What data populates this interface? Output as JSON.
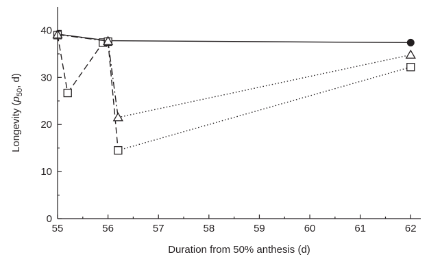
{
  "chart_data": {
    "type": "line",
    "title": "",
    "xlabel": "Duration from 50% anthesis (d)",
    "ylabel": {
      "pre": "Longevity (",
      "italic": "p",
      "sub": "50",
      "post": ", d)"
    },
    "xlim": [
      55,
      62.2
    ],
    "ylim": [
      0,
      45
    ],
    "xticks": [
      55,
      56,
      57,
      58,
      59,
      60,
      61,
      62
    ],
    "yticks": [
      0,
      10,
      20,
      30,
      40
    ],
    "grid": false,
    "legend": "none",
    "series": [
      {
        "marker": "filled-circle",
        "line": "solid",
        "color": "#231f20",
        "points": [
          [
            55.0,
            39.2
          ],
          [
            56.0,
            37.8
          ],
          [
            62.0,
            37.4
          ]
        ],
        "segments": [
          {
            "from": 0,
            "to": 1,
            "style": "solid"
          },
          {
            "from": 1,
            "to": 2,
            "style": "solid"
          }
        ]
      },
      {
        "marker": "open-square",
        "line": "dashed",
        "color": "#231f20",
        "points": [
          [
            55.0,
            39.0
          ],
          [
            55.2,
            26.7
          ],
          [
            55.9,
            37.4
          ],
          [
            56.0,
            37.6
          ],
          [
            56.2,
            14.5
          ],
          [
            62.0,
            32.2
          ]
        ],
        "segments": [
          {
            "from": 0,
            "to": 1,
            "style": "dashed"
          },
          {
            "from": 1,
            "to": 2,
            "style": "dashed"
          },
          {
            "from": 2,
            "to": 3,
            "style": "dashed"
          },
          {
            "from": 3,
            "to": 4,
            "style": "dashed"
          },
          {
            "from": 4,
            "to": 5,
            "style": "dotted"
          }
        ]
      },
      {
        "marker": "open-triangle",
        "line": "dash-dot",
        "color": "#231f20",
        "points": [
          [
            55.0,
            39.1
          ],
          [
            56.0,
            37.7
          ],
          [
            56.2,
            21.5
          ],
          [
            62.0,
            34.8
          ]
        ],
        "segments": [
          {
            "from": 0,
            "to": 1,
            "style": "dashdot"
          },
          {
            "from": 1,
            "to": 2,
            "style": "dashdot"
          },
          {
            "from": 2,
            "to": 3,
            "style": "dotted"
          }
        ]
      }
    ]
  }
}
